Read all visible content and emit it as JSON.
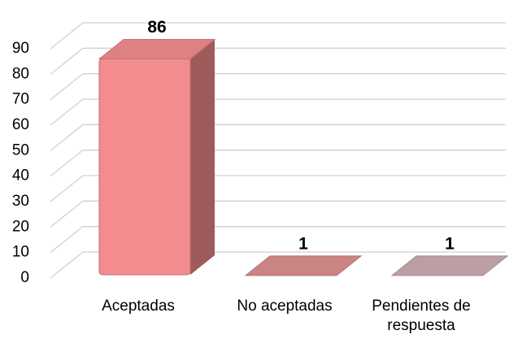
{
  "chart_data": {
    "type": "bar3d",
    "categories": [
      "Aceptadas",
      "No aceptadas",
      "Pendientes de respuesta"
    ],
    "values": [
      86,
      1,
      1
    ],
    "colors": [
      "#f28c8e",
      "#dc8f90",
      "#ccadb0"
    ],
    "ylim": [
      0,
      90
    ],
    "yticks": [
      0,
      10,
      20,
      30,
      40,
      50,
      60,
      70,
      80,
      90
    ],
    "grid": true
  }
}
